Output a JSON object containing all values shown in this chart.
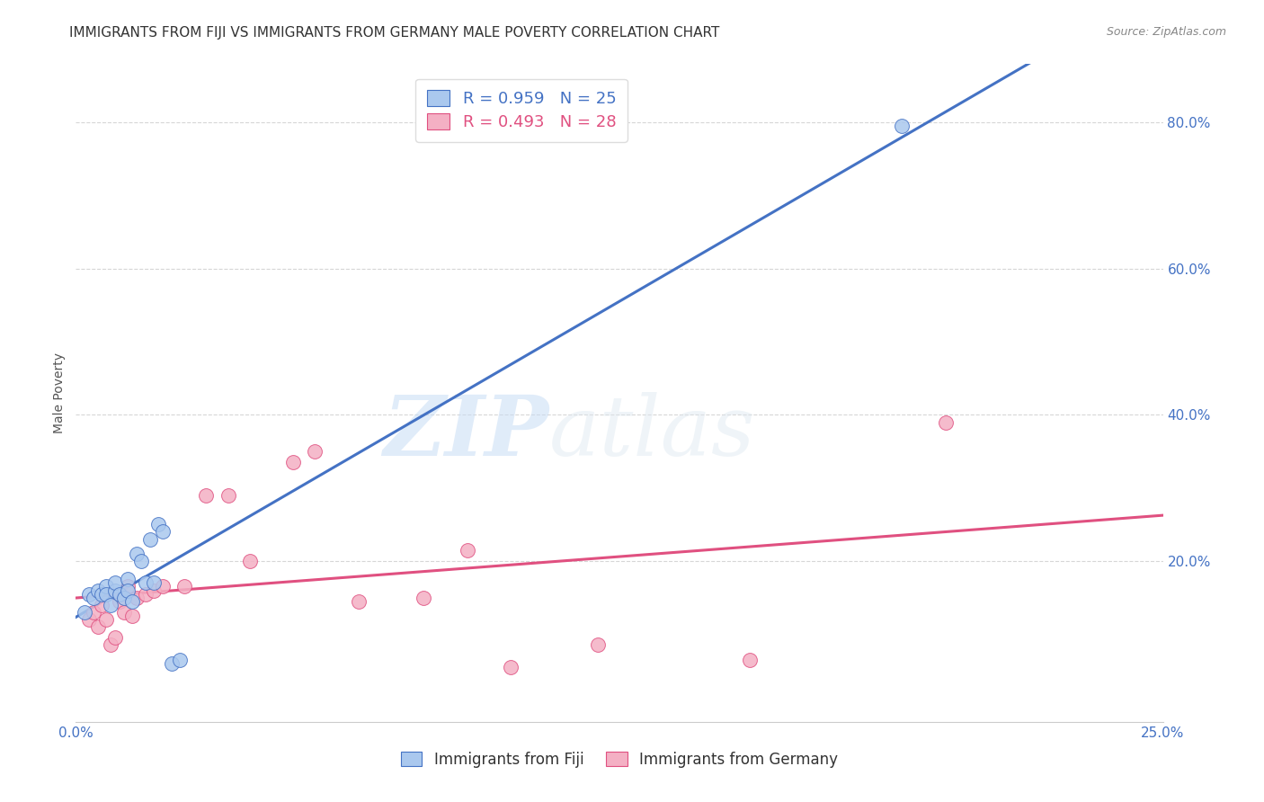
{
  "title": "IMMIGRANTS FROM FIJI VS IMMIGRANTS FROM GERMANY MALE POVERTY CORRELATION CHART",
  "source": "Source: ZipAtlas.com",
  "ylabel": "Male Poverty",
  "x_min": 0.0,
  "x_max": 0.25,
  "y_min": -0.02,
  "y_max": 0.88,
  "x_ticks": [
    0.0,
    0.25
  ],
  "x_tick_labels": [
    "0.0%",
    "25.0%"
  ],
  "y_ticks": [
    0.2,
    0.4,
    0.6,
    0.8
  ],
  "y_tick_labels": [
    "20.0%",
    "40.0%",
    "60.0%",
    "80.0%"
  ],
  "fiji_color": "#aac8ee",
  "fiji_line_color": "#4472c4",
  "germany_color": "#f4b0c4",
  "germany_line_color": "#e05080",
  "legend_fiji_label": "R = 0.959   N = 25",
  "legend_germany_label": "R = 0.493   N = 28",
  "fiji_scatter_x": [
    0.002,
    0.003,
    0.004,
    0.005,
    0.006,
    0.007,
    0.007,
    0.008,
    0.009,
    0.009,
    0.01,
    0.011,
    0.012,
    0.012,
    0.013,
    0.014,
    0.015,
    0.016,
    0.017,
    0.018,
    0.019,
    0.02,
    0.022,
    0.024,
    0.19
  ],
  "fiji_scatter_y": [
    0.13,
    0.155,
    0.15,
    0.16,
    0.155,
    0.165,
    0.155,
    0.14,
    0.16,
    0.17,
    0.155,
    0.15,
    0.175,
    0.16,
    0.145,
    0.21,
    0.2,
    0.17,
    0.23,
    0.17,
    0.25,
    0.24,
    0.06,
    0.065,
    0.795
  ],
  "germany_scatter_x": [
    0.003,
    0.004,
    0.005,
    0.006,
    0.007,
    0.008,
    0.009,
    0.01,
    0.011,
    0.012,
    0.013,
    0.014,
    0.016,
    0.018,
    0.02,
    0.025,
    0.03,
    0.035,
    0.04,
    0.05,
    0.055,
    0.065,
    0.08,
    0.09,
    0.1,
    0.12,
    0.155,
    0.2
  ],
  "germany_scatter_y": [
    0.12,
    0.13,
    0.11,
    0.14,
    0.12,
    0.085,
    0.095,
    0.145,
    0.13,
    0.165,
    0.125,
    0.15,
    0.155,
    0.16,
    0.165,
    0.165,
    0.29,
    0.29,
    0.2,
    0.335,
    0.35,
    0.145,
    0.15,
    0.215,
    0.055,
    0.085,
    0.065,
    0.39
  ],
  "watermark_zip": "ZIP",
  "watermark_atlas": "atlas",
  "background_color": "#ffffff",
  "grid_color": "#cccccc",
  "title_fontsize": 11,
  "axis_label_fontsize": 10,
  "tick_fontsize": 11,
  "legend_fontsize": 13
}
